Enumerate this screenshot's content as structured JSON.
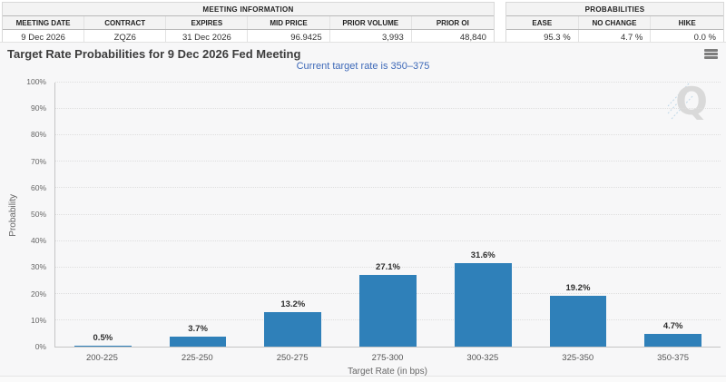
{
  "meeting_info": {
    "title": "MEETING INFORMATION",
    "columns": [
      "MEETING DATE",
      "CONTRACT",
      "EXPIRES",
      "MID PRICE",
      "PRIOR VOLUME",
      "PRIOR OI"
    ],
    "values": [
      "9 Dec 2026",
      "ZQZ6",
      "31 Dec 2026",
      "96.9425",
      "3,993",
      "48,840"
    ]
  },
  "probabilities": {
    "title": "PROBABILITIES",
    "columns": [
      "EASE",
      "NO CHANGE",
      "HIKE"
    ],
    "values": [
      "95.3 %",
      "4.7 %",
      "0.0 %"
    ]
  },
  "chart_header": {
    "title": "Target Rate Probabilities for 9 Dec 2026 Fed Meeting",
    "subtitle": "Current target rate is 350–375",
    "menu_icon": "hamburger-menu-icon",
    "watermark_letter": "Q"
  },
  "colors": {
    "bar": "#2f80b9",
    "subtitle": "#3e69b8",
    "chart_background": "#f7f7f8"
  },
  "chart_data": {
    "type": "bar",
    "title": "Target Rate Probabilities for 9 Dec 2026 Fed Meeting",
    "subtitle": "Current target rate is 350–375",
    "categories": [
      "200-225",
      "225-250",
      "250-275",
      "275-300",
      "300-325",
      "325-350",
      "350-375"
    ],
    "values": [
      0.5,
      3.7,
      13.2,
      27.1,
      31.6,
      19.2,
      4.7
    ],
    "value_labels": [
      "0.5%",
      "3.7%",
      "13.2%",
      "27.1%",
      "31.6%",
      "19.2%",
      "4.7%"
    ],
    "xlabel": "Target Rate (in bps)",
    "ylabel": "Probability",
    "ylim": [
      0,
      100
    ],
    "ytick_step": 10,
    "ytick_suffix": "%",
    "grid": true,
    "legend": false,
    "bar_color": "#2f80b9"
  }
}
